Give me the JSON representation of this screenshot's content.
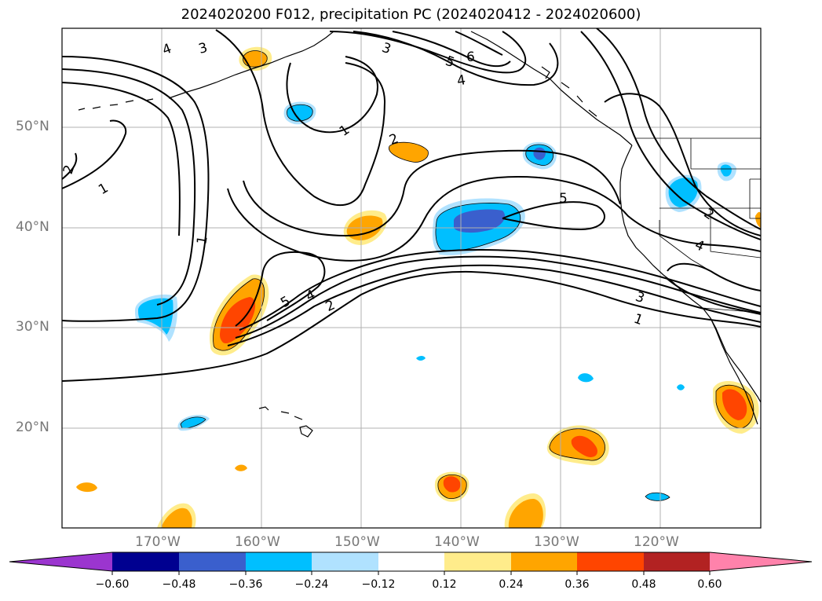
{
  "title": "2024020200 F012, precipitation PC (2024020412 - 2024020600)",
  "lat_labels": [
    "50°N",
    "40°N",
    "30°N",
    "20°N"
  ],
  "lon_labels": [
    "170°W",
    "160°W",
    "150°W",
    "140°W",
    "130°W",
    "120°W"
  ],
  "colorbar": {
    "ticks": [
      "−0.60",
      "−0.48",
      "−0.36",
      "−0.24",
      "−0.12",
      "0.12",
      "0.24",
      "0.36",
      "0.48",
      "0.60"
    ],
    "colors": [
      "#9b35cf",
      "#000090",
      "#3a5fcd",
      "#00bfff",
      "#b0e2ff",
      "#ffffff",
      "#ffec8b",
      "#ffa500",
      "#ff4500",
      "#b22222",
      "#ff82ab"
    ]
  },
  "contour_labels": [
    "4",
    "3",
    "3",
    "5",
    "6",
    "4",
    "1",
    "2",
    "2",
    "1",
    "1",
    "5",
    "5",
    "4",
    "2",
    "3",
    "1",
    "4",
    "2"
  ],
  "map": {
    "projection": "lat-lon",
    "extent_lon": [
      -180,
      -110
    ],
    "extent_lat": [
      10,
      60
    ]
  }
}
